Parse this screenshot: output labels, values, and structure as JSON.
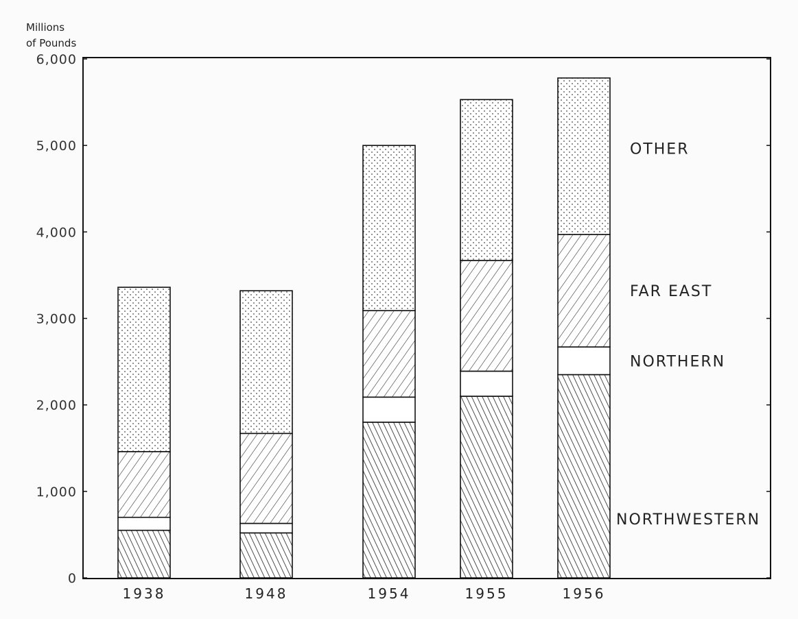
{
  "chart_data": {
    "type": "bar",
    "stacked": true,
    "ylabel_line1": "Millions",
    "ylabel_line2": "of Pounds",
    "ylim": [
      0,
      6000
    ],
    "yticks": [
      0,
      1000,
      2000,
      3000,
      4000,
      5000,
      6000
    ],
    "ytick_labels": [
      "0",
      "1,000",
      "2,000",
      "3,000",
      "4,000",
      "5,000",
      "6,000"
    ],
    "categories": [
      "1938",
      "1948",
      "1954",
      "1955",
      "1956"
    ],
    "grid": false,
    "legend_placement": "right (labels beside last bar)",
    "series": [
      {
        "name": "NORTHWESTERN",
        "pattern": "dense-forward-hatch",
        "values": [
          550,
          520,
          1800,
          2100,
          2350
        ]
      },
      {
        "name": "NORTHERN",
        "pattern": "blank",
        "values": [
          150,
          110,
          290,
          290,
          320
        ]
      },
      {
        "name": "FAR EAST",
        "pattern": "back-hatch",
        "values": [
          760,
          1040,
          1000,
          1280,
          1300
        ]
      },
      {
        "name": "OTHER",
        "pattern": "dots",
        "values": [
          1900,
          1650,
          1910,
          1860,
          1810
        ]
      }
    ]
  }
}
